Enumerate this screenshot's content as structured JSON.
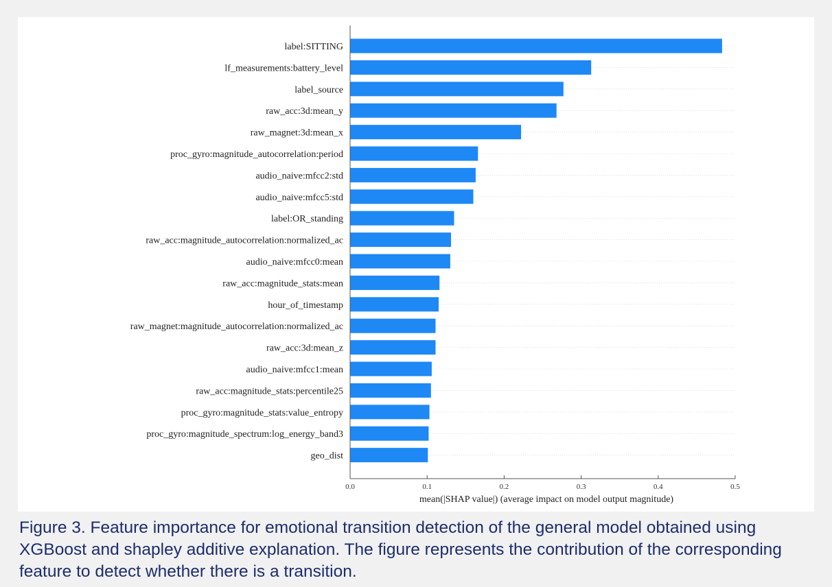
{
  "chart_data": {
    "type": "bar",
    "orientation": "horizontal",
    "categories": [
      "label:SITTING",
      "lf_measurements:battery_level",
      "label_source",
      "raw_acc:3d:mean_y",
      "raw_magnet:3d:mean_x",
      "proc_gyro:magnitude_autocorrelation:period",
      "audio_naive:mfcc2:std",
      "audio_naive:mfcc5:std",
      "label:OR_standing",
      "raw_acc:magnitude_autocorrelation:normalized_ac",
      "audio_naive:mfcc0:mean",
      "raw_acc:magnitude_stats:mean",
      "hour_of_timestamp",
      "raw_magnet:magnitude_autocorrelation:normalized_ac",
      "raw_acc:3d:mean_z",
      "audio_naive:mfcc1:mean",
      "raw_acc:magnitude_stats:percentile25",
      "proc_gyro:magnitude_stats:value_entropy",
      "proc_gyro:magnitude_spectrum:log_energy_band3",
      "geo_dist"
    ],
    "values": [
      0.483,
      0.313,
      0.277,
      0.268,
      0.222,
      0.166,
      0.163,
      0.16,
      0.135,
      0.131,
      0.13,
      0.116,
      0.115,
      0.111,
      0.111,
      0.106,
      0.105,
      0.103,
      0.102,
      0.101
    ],
    "xlabel": "mean(|SHAP value|) (average impact on model output magnitude)",
    "xlim": [
      0,
      0.5
    ],
    "xticks": [
      0.0,
      0.1,
      0.2,
      0.3,
      0.4,
      0.5
    ],
    "xtick_labels": [
      "0.0",
      "0.1",
      "0.2",
      "0.3",
      "0.4",
      "0.5"
    ],
    "bar_color": "#1e88f5"
  },
  "caption": "Figure 3. Feature importance for emotional transition detection of the general model obtained using XGBoost and shapley additive explanation. The figure represents the contribution of the corresponding feature to detect whether there is a transition."
}
